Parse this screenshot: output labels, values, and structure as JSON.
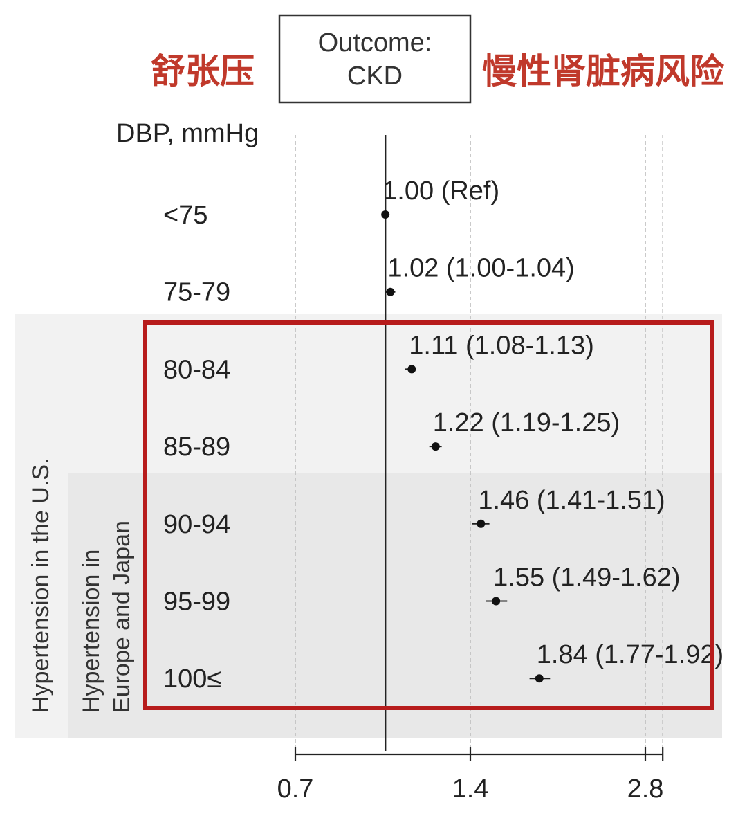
{
  "annotations": {
    "left_cn": "舒张压",
    "right_cn": "慢性肾脏病风险",
    "highlight_color": "#b71c1c"
  },
  "outcome_box": {
    "line1": "Outcome:",
    "line2": "CKD"
  },
  "row_header": "DBP, mmHg",
  "bands": {
    "us": "Hypertension in the U.S.",
    "eu_line1": "Hypertension in",
    "eu_line2": "Europe and Japan"
  },
  "chart_data": {
    "type": "forest",
    "title": "",
    "xlabel": "",
    "ylabel": "DBP, mmHg",
    "x_scale": "log",
    "xlim": [
      0.7,
      3.0
    ],
    "xticks": [
      0.7,
      1.4,
      2.8
    ],
    "xtick_labels": [
      "0.7",
      "1.4",
      "2.8"
    ],
    "gridlines": [
      0.7,
      1.4,
      2.8,
      3.0
    ],
    "reference_line": 1.0,
    "rows": [
      {
        "category": "<75",
        "est": 1.0,
        "lo": 1.0,
        "hi": 1.0,
        "label": "1.00 (Ref)"
      },
      {
        "category": "75-79",
        "est": 1.02,
        "lo": 1.0,
        "hi": 1.04,
        "label": "1.02 (1.00-1.04)"
      },
      {
        "category": "80-84",
        "est": 1.11,
        "lo": 1.08,
        "hi": 1.13,
        "label": "1.11 (1.08-1.13)"
      },
      {
        "category": "85-89",
        "est": 1.22,
        "lo": 1.19,
        "hi": 1.25,
        "label": "1.22 (1.19-1.25)"
      },
      {
        "category": "90-94",
        "est": 1.46,
        "lo": 1.41,
        "hi": 1.51,
        "label": "1.46 (1.41-1.51)"
      },
      {
        "category": "95-99",
        "est": 1.55,
        "lo": 1.49,
        "hi": 1.62,
        "label": "1.55 (1.49-1.62)"
      },
      {
        "category": "100≤",
        "est": 1.84,
        "lo": 1.77,
        "hi": 1.92,
        "label": "1.84 (1.77-1.92)"
      }
    ]
  }
}
